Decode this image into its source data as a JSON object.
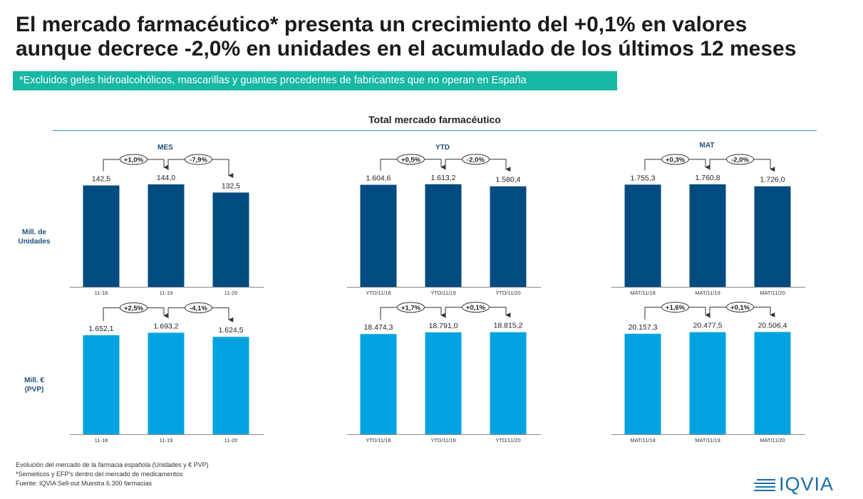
{
  "header": {
    "title_line1": "El mercado farmacéutico* presenta un crecimiento del +0,1% en valores",
    "title_line2": "aunque decrece -2,0% en unidades en el acumulado de los últimos 12 meses",
    "subtitle": "*Excluidos geles hidroalcohólicos, mascarillas y guantes procedentes de fabricantes que no operan en España"
  },
  "section_title": "Total mercado farmacéutico",
  "columns": [
    "MES",
    "YTD",
    "MAT"
  ],
  "rows": [
    {
      "label_line1": "Mill. de",
      "label_line2": "Unidades"
    },
    {
      "label_line1": "Mill. €",
      "label_line2": "(PVP)"
    }
  ],
  "colors": {
    "units_bar": "#004b7f",
    "value_bar": "#00a3e0",
    "axis": "#888888",
    "arrow": "#333333"
  },
  "chart_data": [
    {
      "type": "bar",
      "panel": "MES - Mill. de Unidades",
      "categories": [
        "11-18",
        "11-19",
        "11-20"
      ],
      "values": [
        142.5,
        144.0,
        132.5
      ],
      "value_labels": [
        "142,5",
        "144,0",
        "132,5"
      ],
      "growth_labels": [
        "+1,0%",
        "-7,9%"
      ],
      "ylim": [
        0,
        160
      ]
    },
    {
      "type": "bar",
      "panel": "YTD - Mill. de Unidades",
      "categories": [
        "YTD/11/18",
        "YTD/11/19",
        "YTD/11/20"
      ],
      "values": [
        1604.6,
        1613.2,
        1580.4
      ],
      "value_labels": [
        "1.604,6",
        "1.613,2",
        "1.580,4"
      ],
      "growth_labels": [
        "+0,5%",
        "-2,0%"
      ],
      "ylim": [
        0,
        1790
      ]
    },
    {
      "type": "bar",
      "panel": "MAT - Mill. de Unidades",
      "categories": [
        "MAT/11/18",
        "MAT/11/19",
        "MAT/11/20"
      ],
      "values": [
        1755.3,
        1760.8,
        1726.0
      ],
      "value_labels": [
        "1.755,3",
        "1.760,8",
        "1.726,0"
      ],
      "growth_labels": [
        "+0,3%",
        "-2,0%"
      ],
      "ylim": [
        0,
        1955
      ]
    },
    {
      "type": "bar",
      "panel": "MES - Mill. € (PVP)",
      "categories": [
        "11-18",
        "11-19",
        "11-20"
      ],
      "values": [
        1652.1,
        1693.2,
        1624.5
      ],
      "value_labels": [
        "1.652,1",
        "1.693,2",
        "1.624,5"
      ],
      "growth_labels": [
        "+2,5%",
        "-4,1%"
      ],
      "ylim": [
        0,
        1900
      ]
    },
    {
      "type": "bar",
      "panel": "YTD - Mill. € (PVP)",
      "categories": [
        "YTD/11/18",
        "YTD/11/19",
        "YTD/11/20"
      ],
      "values": [
        18474.3,
        18791.0,
        18815.2
      ],
      "value_labels": [
        "18.474,3",
        "18.791,0",
        "18.815,2"
      ],
      "growth_labels": [
        "+1,7%",
        "+0,1%"
      ],
      "ylim": [
        0,
        21000
      ]
    },
    {
      "type": "bar",
      "panel": "MAT - Mill. € (PVP)",
      "categories": [
        "MAT/11/18",
        "MAT/11/19",
        "MAT/11/20"
      ],
      "values": [
        20157.3,
        20477.5,
        20506.4
      ],
      "value_labels": [
        "20.157,3",
        "20.477,5",
        "20.506,4"
      ],
      "growth_labels": [
        "+1,6%",
        "+0,1%"
      ],
      "ylim": [
        0,
        22850
      ]
    }
  ],
  "footnotes": [
    "Evolución del mercado de la farmacia española (Unidades y € PVP)",
    "*Semieticos y EFP's dentro del mercado de medicamentos",
    "Fuente: IQVIA Sell-out Muestra 6.300 farmacias"
  ],
  "logo": {
    "text": "IQVIA",
    "icon": "iqvia-logo-stripes-icon"
  }
}
